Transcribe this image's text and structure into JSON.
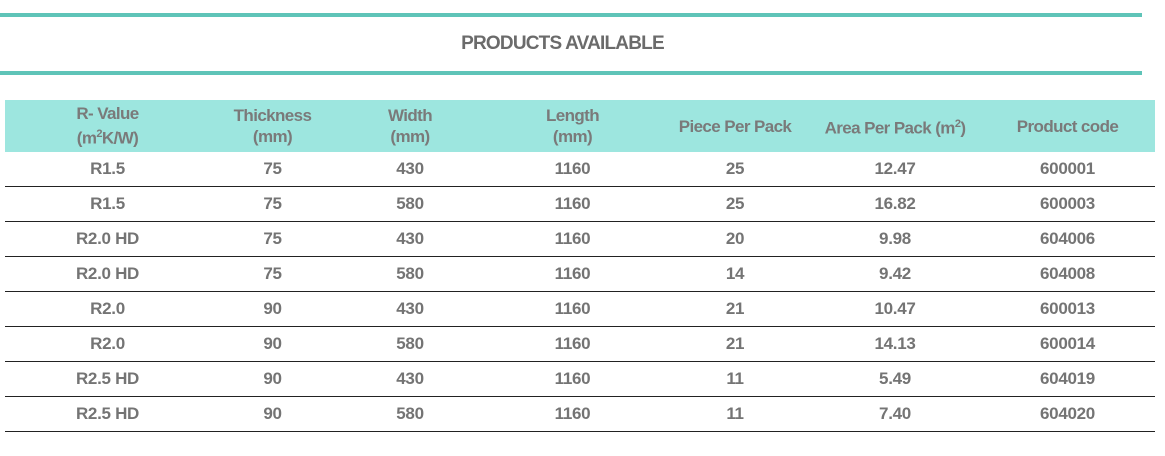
{
  "title": "PRODUCTS AVAILABLE",
  "colors": {
    "accent_rule": "#5fc4b8",
    "header_bg": "#9de6df",
    "text": "#747474"
  },
  "headers": [
    {
      "line1": "R- Value",
      "line2_pre": "(m",
      "sup": "2",
      "line2_post": "K/W)"
    },
    {
      "line1": "Thickness",
      "line2_pre": "(mm)"
    },
    {
      "line1": "Width",
      "line2_pre": "(mm)"
    },
    {
      "line1": "Length",
      "line2_pre": "(mm)"
    },
    {
      "line1": "Piece Per Pack"
    },
    {
      "line1": "Area Per Pack (m",
      "sup": "2",
      "line2_post": ")"
    },
    {
      "line1": "Product code"
    }
  ],
  "rows": [
    [
      "R1.5",
      "75",
      "430",
      "1160",
      "25",
      "12.47",
      "600001"
    ],
    [
      "R1.5",
      "75",
      "580",
      "1160",
      "25",
      "16.82",
      "600003"
    ],
    [
      "R2.0 HD",
      "75",
      "430",
      "1160",
      "20",
      "9.98",
      "604006"
    ],
    [
      "R2.0 HD",
      "75",
      "580",
      "1160",
      "14",
      "9.42",
      "604008"
    ],
    [
      "R2.0",
      "90",
      "430",
      "1160",
      "21",
      "10.47",
      "600013"
    ],
    [
      "R2.0",
      "90",
      "580",
      "1160",
      "21",
      "14.13",
      "600014"
    ],
    [
      "R2.5 HD",
      "90",
      "430",
      "1160",
      "11",
      "5.49",
      "604019"
    ],
    [
      "R2.5 HD",
      "90",
      "580",
      "1160",
      "11",
      "7.40",
      "604020"
    ]
  ]
}
